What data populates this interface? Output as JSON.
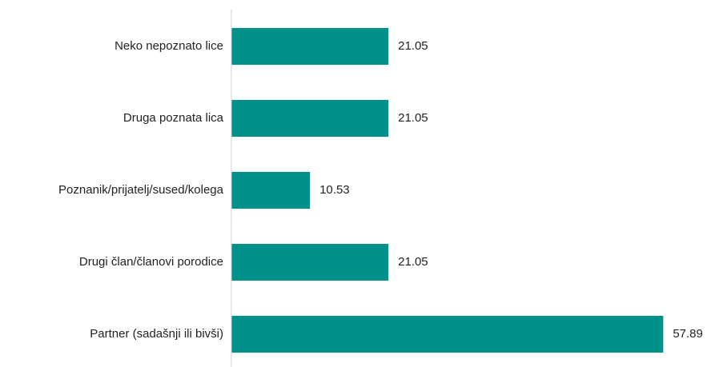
{
  "chart_data": {
    "type": "barh",
    "categories": [
      "Neko nepoznato lice",
      "Druga poznata lica",
      "Poznanik/prijatelj/sused/kolega",
      "Drugi član/članovi porodice",
      "Partner (sadašnji ili bivši)"
    ],
    "values": [
      21.05,
      21.05,
      10.53,
      21.05,
      57.89
    ],
    "color": "#00928a",
    "xlim": [
      0,
      60
    ]
  }
}
